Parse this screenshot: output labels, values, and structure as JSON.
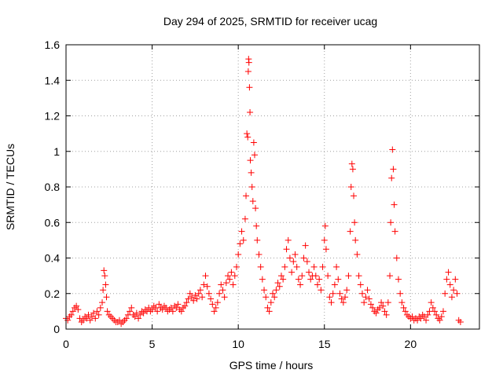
{
  "chart_data": {
    "type": "scatter",
    "title": "Day 294 of 2025, SRMTID for receiver ucag",
    "xlabel": "GPS time / hours",
    "ylabel": "SRMTID / TECUs",
    "xlim": [
      0,
      24
    ],
    "ylim": [
      0,
      1.6
    ],
    "x_ticks": [
      0,
      5,
      10,
      15,
      20
    ],
    "x_tick_labels": [
      "0",
      "5",
      "10",
      "15",
      "20"
    ],
    "y_ticks": [
      0,
      0.2,
      0.4,
      0.6,
      0.8,
      1.0,
      1.2,
      1.4,
      1.6
    ],
    "y_tick_labels": [
      "0",
      "0.2",
      "0.4",
      "0.6",
      "0.8",
      "1",
      "1.2",
      "1.4",
      "1.6"
    ],
    "grid": true,
    "marker": "+",
    "series": [
      {
        "name": "SRMTID",
        "color": "#ff0000",
        "points": [
          [
            0.0,
            0.06
          ],
          [
            0.1,
            0.05
          ],
          [
            0.2,
            0.07
          ],
          [
            0.3,
            0.08
          ],
          [
            0.4,
            0.1
          ],
          [
            0.5,
            0.12
          ],
          [
            0.6,
            0.13
          ],
          [
            0.7,
            0.11
          ],
          [
            0.8,
            0.06
          ],
          [
            0.9,
            0.04
          ],
          [
            1.0,
            0.05
          ],
          [
            1.1,
            0.07
          ],
          [
            1.2,
            0.06
          ],
          [
            1.3,
            0.08
          ],
          [
            1.4,
            0.05
          ],
          [
            1.5,
            0.07
          ],
          [
            1.6,
            0.09
          ],
          [
            1.7,
            0.06
          ],
          [
            1.8,
            0.1
          ],
          [
            1.9,
            0.08
          ],
          [
            2.0,
            0.12
          ],
          [
            2.1,
            0.15
          ],
          [
            2.15,
            0.22
          ],
          [
            2.2,
            0.33
          ],
          [
            2.25,
            0.3
          ],
          [
            2.3,
            0.25
          ],
          [
            2.35,
            0.18
          ],
          [
            2.4,
            0.1
          ],
          [
            2.5,
            0.08
          ],
          [
            2.6,
            0.07
          ],
          [
            2.7,
            0.06
          ],
          [
            2.8,
            0.05
          ],
          [
            2.9,
            0.04
          ],
          [
            3.0,
            0.04
          ],
          [
            3.1,
            0.05
          ],
          [
            3.2,
            0.03
          ],
          [
            3.3,
            0.04
          ],
          [
            3.4,
            0.05
          ],
          [
            3.5,
            0.06
          ],
          [
            3.6,
            0.08
          ],
          [
            3.7,
            0.1
          ],
          [
            3.8,
            0.12
          ],
          [
            3.9,
            0.08
          ],
          [
            4.0,
            0.07
          ],
          [
            4.1,
            0.09
          ],
          [
            4.2,
            0.06
          ],
          [
            4.3,
            0.08
          ],
          [
            4.4,
            0.1
          ],
          [
            4.5,
            0.09
          ],
          [
            4.6,
            0.11
          ],
          [
            4.7,
            0.1
          ],
          [
            4.8,
            0.12
          ],
          [
            4.9,
            0.1
          ],
          [
            5.0,
            0.11
          ],
          [
            5.1,
            0.13
          ],
          [
            5.2,
            0.12
          ],
          [
            5.3,
            0.1
          ],
          [
            5.4,
            0.14
          ],
          [
            5.5,
            0.12
          ],
          [
            5.6,
            0.11
          ],
          [
            5.7,
            0.13
          ],
          [
            5.8,
            0.12
          ],
          [
            5.9,
            0.1
          ],
          [
            6.0,
            0.11
          ],
          [
            6.1,
            0.12
          ],
          [
            6.2,
            0.1
          ],
          [
            6.3,
            0.13
          ],
          [
            6.4,
            0.12
          ],
          [
            6.5,
            0.14
          ],
          [
            6.6,
            0.11
          ],
          [
            6.7,
            0.1
          ],
          [
            6.8,
            0.12
          ],
          [
            6.9,
            0.13
          ],
          [
            7.0,
            0.15
          ],
          [
            7.1,
            0.17
          ],
          [
            7.2,
            0.2
          ],
          [
            7.3,
            0.18
          ],
          [
            7.4,
            0.16
          ],
          [
            7.5,
            0.19
          ],
          [
            7.6,
            0.17
          ],
          [
            7.7,
            0.2
          ],
          [
            7.8,
            0.22
          ],
          [
            7.9,
            0.18
          ],
          [
            8.0,
            0.25
          ],
          [
            8.1,
            0.3
          ],
          [
            8.2,
            0.24
          ],
          [
            8.3,
            0.2
          ],
          [
            8.4,
            0.17
          ],
          [
            8.5,
            0.14
          ],
          [
            8.6,
            0.1
          ],
          [
            8.7,
            0.12
          ],
          [
            8.8,
            0.15
          ],
          [
            8.9,
            0.2
          ],
          [
            9.0,
            0.25
          ],
          [
            9.1,
            0.22
          ],
          [
            9.2,
            0.18
          ],
          [
            9.3,
            0.26
          ],
          [
            9.4,
            0.3
          ],
          [
            9.5,
            0.28
          ],
          [
            9.6,
            0.32
          ],
          [
            9.7,
            0.25
          ],
          [
            9.8,
            0.3
          ],
          [
            9.9,
            0.35
          ],
          [
            10.0,
            0.42
          ],
          [
            10.1,
            0.48
          ],
          [
            10.2,
            0.55
          ],
          [
            10.3,
            0.5
          ],
          [
            10.4,
            0.62
          ],
          [
            10.45,
            0.75
          ],
          [
            10.5,
            1.1
          ],
          [
            10.55,
            1.08
          ],
          [
            10.58,
            1.45
          ],
          [
            10.6,
            1.52
          ],
          [
            10.62,
            1.5
          ],
          [
            10.65,
            1.36
          ],
          [
            10.68,
            1.22
          ],
          [
            10.7,
            0.95
          ],
          [
            10.75,
            0.88
          ],
          [
            10.8,
            0.8
          ],
          [
            10.85,
            0.72
          ],
          [
            10.9,
            1.05
          ],
          [
            10.95,
            0.98
          ],
          [
            11.0,
            0.68
          ],
          [
            11.05,
            0.58
          ],
          [
            11.1,
            0.5
          ],
          [
            11.2,
            0.42
          ],
          [
            11.3,
            0.35
          ],
          [
            11.4,
            0.28
          ],
          [
            11.5,
            0.22
          ],
          [
            11.6,
            0.18
          ],
          [
            11.7,
            0.12
          ],
          [
            11.8,
            0.1
          ],
          [
            11.9,
            0.15
          ],
          [
            12.0,
            0.2
          ],
          [
            12.1,
            0.18
          ],
          [
            12.2,
            0.22
          ],
          [
            12.3,
            0.26
          ],
          [
            12.4,
            0.24
          ],
          [
            12.5,
            0.3
          ],
          [
            12.6,
            0.28
          ],
          [
            12.7,
            0.35
          ],
          [
            12.8,
            0.45
          ],
          [
            12.9,
            0.5
          ],
          [
            13.0,
            0.4
          ],
          [
            13.1,
            0.32
          ],
          [
            13.2,
            0.38
          ],
          [
            13.3,
            0.42
          ],
          [
            13.4,
            0.35
          ],
          [
            13.5,
            0.28
          ],
          [
            13.6,
            0.25
          ],
          [
            13.7,
            0.3
          ],
          [
            13.8,
            0.4
          ],
          [
            13.9,
            0.47
          ],
          [
            14.0,
            0.38
          ],
          [
            14.1,
            0.32
          ],
          [
            14.2,
            0.28
          ],
          [
            14.3,
            0.3
          ],
          [
            14.4,
            0.35
          ],
          [
            14.5,
            0.3
          ],
          [
            14.6,
            0.25
          ],
          [
            14.7,
            0.28
          ],
          [
            14.8,
            0.22
          ],
          [
            14.9,
            0.35
          ],
          [
            15.0,
            0.5
          ],
          [
            15.05,
            0.58
          ],
          [
            15.1,
            0.45
          ],
          [
            15.2,
            0.3
          ],
          [
            15.3,
            0.18
          ],
          [
            15.4,
            0.15
          ],
          [
            15.5,
            0.2
          ],
          [
            15.6,
            0.25
          ],
          [
            15.7,
            0.35
          ],
          [
            15.8,
            0.28
          ],
          [
            15.9,
            0.2
          ],
          [
            16.0,
            0.17
          ],
          [
            16.1,
            0.15
          ],
          [
            16.2,
            0.18
          ],
          [
            16.3,
            0.22
          ],
          [
            16.4,
            0.3
          ],
          [
            16.5,
            0.55
          ],
          [
            16.55,
            0.8
          ],
          [
            16.6,
            0.93
          ],
          [
            16.65,
            0.9
          ],
          [
            16.7,
            0.75
          ],
          [
            16.75,
            0.6
          ],
          [
            16.8,
            0.5
          ],
          [
            16.9,
            0.42
          ],
          [
            17.0,
            0.3
          ],
          [
            17.1,
            0.25
          ],
          [
            17.2,
            0.2
          ],
          [
            17.3,
            0.15
          ],
          [
            17.4,
            0.18
          ],
          [
            17.5,
            0.22
          ],
          [
            17.6,
            0.17
          ],
          [
            17.7,
            0.14
          ],
          [
            17.8,
            0.12
          ],
          [
            17.9,
            0.1
          ],
          [
            18.0,
            0.09
          ],
          [
            18.1,
            0.11
          ],
          [
            18.2,
            0.12
          ],
          [
            18.3,
            0.15
          ],
          [
            18.4,
            0.13
          ],
          [
            18.5,
            0.1
          ],
          [
            18.6,
            0.08
          ],
          [
            18.7,
            0.15
          ],
          [
            18.8,
            0.3
          ],
          [
            18.85,
            0.6
          ],
          [
            18.9,
            0.85
          ],
          [
            18.95,
            1.01
          ],
          [
            19.0,
            0.9
          ],
          [
            19.05,
            0.7
          ],
          [
            19.1,
            0.55
          ],
          [
            19.2,
            0.4
          ],
          [
            19.3,
            0.28
          ],
          [
            19.4,
            0.2
          ],
          [
            19.5,
            0.15
          ],
          [
            19.6,
            0.12
          ],
          [
            19.7,
            0.1
          ],
          [
            19.8,
            0.08
          ],
          [
            19.9,
            0.07
          ],
          [
            20.0,
            0.06
          ],
          [
            20.1,
            0.07
          ],
          [
            20.2,
            0.05
          ],
          [
            20.3,
            0.06
          ],
          [
            20.4,
            0.05
          ],
          [
            20.5,
            0.07
          ],
          [
            20.6,
            0.06
          ],
          [
            20.7,
            0.08
          ],
          [
            20.8,
            0.07
          ],
          [
            20.9,
            0.05
          ],
          [
            21.0,
            0.08
          ],
          [
            21.1,
            0.1
          ],
          [
            21.2,
            0.15
          ],
          [
            21.3,
            0.12
          ],
          [
            21.4,
            0.1
          ],
          [
            21.5,
            0.08
          ],
          [
            21.6,
            0.06
          ],
          [
            21.7,
            0.05
          ],
          [
            21.8,
            0.07
          ],
          [
            21.9,
            0.1
          ],
          [
            22.0,
            0.2
          ],
          [
            22.1,
            0.28
          ],
          [
            22.2,
            0.32
          ],
          [
            22.3,
            0.25
          ],
          [
            22.4,
            0.18
          ],
          [
            22.5,
            0.22
          ],
          [
            22.6,
            0.28
          ],
          [
            22.7,
            0.2
          ],
          [
            22.8,
            0.05
          ],
          [
            22.9,
            0.04
          ]
        ]
      }
    ]
  }
}
